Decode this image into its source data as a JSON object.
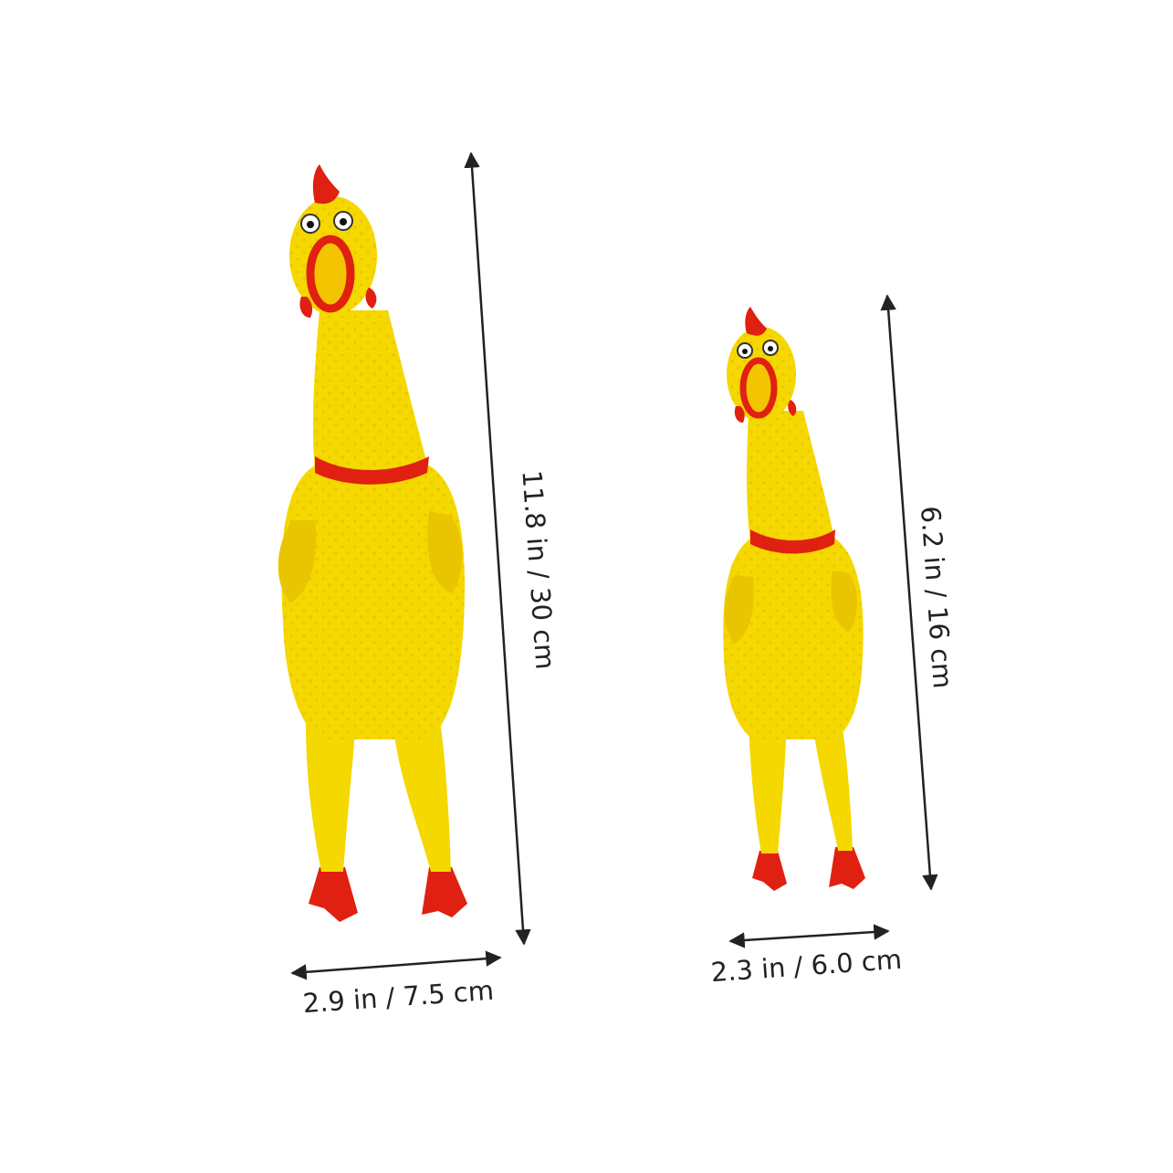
{
  "colors": {
    "background": "#ffffff",
    "toy_body": "#f5d800",
    "toy_shadow": "#d9b400",
    "toy_accent": "#e02010",
    "dimension_line": "#222222"
  },
  "large_toy": {
    "height_label": "11.8 in / 30 cm",
    "width_label": "2.9 in / 7.5 cm"
  },
  "small_toy": {
    "height_label": "6.2 in / 16 cm",
    "width_label": "2.3 in / 6.0 cm"
  }
}
